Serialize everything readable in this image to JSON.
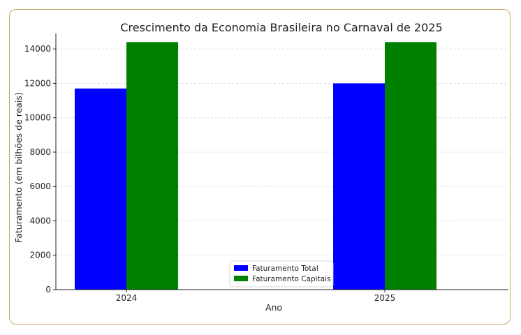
{
  "chart_data": {
    "type": "bar",
    "title": "Crescimento da Economia Brasileira no Carnaval de 2025",
    "xlabel": "Ano",
    "ylabel": "Faturamento (em bilhões de reais)",
    "categories": [
      "2024",
      "2025"
    ],
    "series": [
      {
        "name": "Faturamento Total",
        "color": "#0000ff",
        "values": [
          11700,
          12000
        ]
      },
      {
        "name": "Faturamento Capitais",
        "color": "#008000",
        "values": [
          14400,
          14400
        ]
      }
    ],
    "ylim": [
      0,
      14900
    ],
    "yticks": [
      0,
      2000,
      4000,
      6000,
      8000,
      10000,
      12000,
      14000
    ],
    "grid": true,
    "legend_position": "bottom-center"
  }
}
